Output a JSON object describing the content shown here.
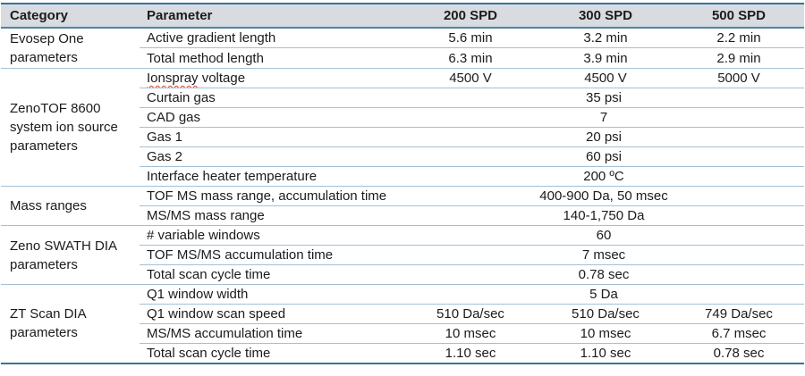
{
  "colors": {
    "header-bg": "#d8dce1",
    "line-strong": "#35749d",
    "line-medium": "#4d85aa",
    "line-light": "#a3c0d6",
    "spellcheck-red": "#e0392f",
    "text": "#1b1b1b"
  },
  "table": {
    "headers": {
      "category": "Category",
      "parameter": "Parameter",
      "spd200": "200 SPD",
      "spd300": "300 SPD",
      "spd500": "500 SPD"
    },
    "groups": [
      {
        "category": "Evosep One parameters",
        "rows": [
          {
            "parameter": "Active gradient length",
            "values": [
              "5.6 min",
              "3.2 min",
              "2.2 min"
            ]
          },
          {
            "parameter": "Total method length",
            "values": [
              "6.3 min",
              "3.9 min",
              "2.9 min"
            ]
          }
        ]
      },
      {
        "category": "ZenoTOF 8600 system ion source parameters",
        "rows": [
          {
            "parameter": "Ionspray voltage",
            "parameter_misspelled": "Ionspray",
            "parameter_rest": " voltage",
            "values": [
              "4500 V",
              "4500 V",
              "5000 V"
            ]
          },
          {
            "parameter": "Curtain gas",
            "span_value": "35 psi"
          },
          {
            "parameter": "CAD gas",
            "span_value": "7"
          },
          {
            "parameter": "Gas 1",
            "span_value": "20 psi"
          },
          {
            "parameter": "Gas 2",
            "span_value": "60 psi"
          },
          {
            "parameter": "Interface heater temperature",
            "span_value": "200 ºC"
          }
        ]
      },
      {
        "category": "Mass ranges",
        "rows": [
          {
            "parameter": "TOF MS mass range, accumulation time",
            "span_value": "400-900 Da, 50 msec"
          },
          {
            "parameter": "MS/MS mass range",
            "span_value": "140-1,750 Da"
          }
        ]
      },
      {
        "category": "Zeno SWATH DIA parameters",
        "rows": [
          {
            "parameter": "# variable windows",
            "span_value": "60"
          },
          {
            "parameter": "TOF MS/MS accumulation time",
            "span_value": "7 msec"
          },
          {
            "parameter": "Total scan cycle time",
            "span_value": "0.78 sec"
          }
        ]
      },
      {
        "category": "ZT Scan DIA parameters",
        "rows": [
          {
            "parameter": "Q1 window width",
            "span_value": "5 Da"
          },
          {
            "parameter": "Q1 window scan speed",
            "values": [
              "510 Da/sec",
              "510 Da/sec",
              "749 Da/sec"
            ]
          },
          {
            "parameter": "MS/MS accumulation time",
            "values": [
              "10 msec",
              "10 msec",
              "6.7 msec"
            ]
          },
          {
            "parameter": "Total scan cycle time",
            "values": [
              "1.10 sec",
              "1.10 sec",
              "0.78 sec"
            ]
          }
        ]
      }
    ]
  }
}
